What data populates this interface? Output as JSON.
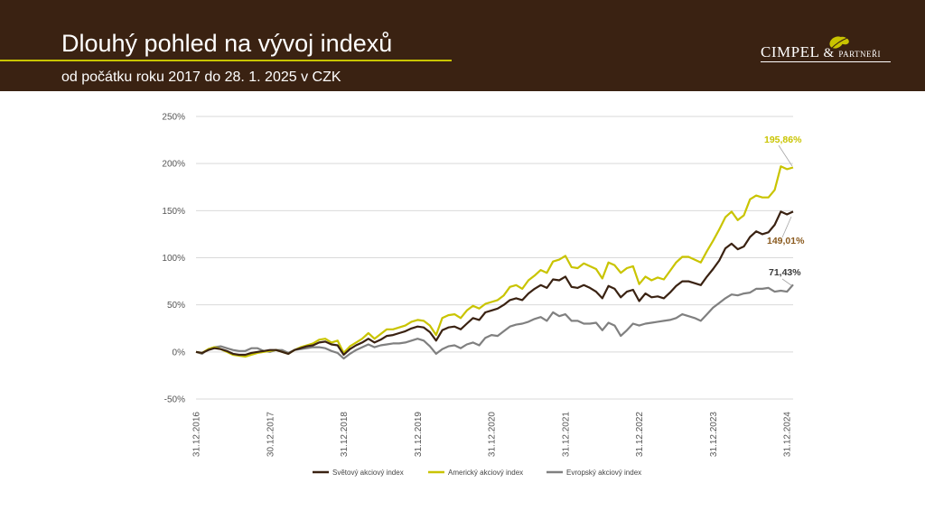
{
  "slide": {
    "title": "Dlouhý pohled na vývoj indexů",
    "subtitle": "od počátku roku 2017 do 28. 1. 2025 v CZK",
    "logo_main": "CIMPEL",
    "logo_amp": "&",
    "logo_small": "PARTNEŘI"
  },
  "colors": {
    "header_bg": "#3a2212",
    "accent": "#c9c400",
    "world": "#3a2212",
    "america": "#c9c400",
    "europe": "#808080"
  },
  "chart_data": {
    "type": "line",
    "title": "",
    "xlabel": "",
    "ylabel": "",
    "ylim": [
      -50,
      250
    ],
    "y_ticks": [
      "-50%",
      "0%",
      "50%",
      "100%",
      "150%",
      "200%",
      "250%"
    ],
    "y_tick_values": [
      -50,
      0,
      50,
      100,
      150,
      200,
      250
    ],
    "x_range": [
      0,
      97
    ],
    "x_tick_labels": [
      "31.12.2016",
      "30.12.2017",
      "31.12.2018",
      "31.12.2019",
      "31.12.2020",
      "31.12.2021",
      "31.12.2022",
      "31.12.2023",
      "31.12.2024"
    ],
    "x_tick_positions": [
      0,
      12,
      24,
      36,
      48,
      60,
      72,
      84,
      96
    ],
    "grid": true,
    "legend_position": "bottom",
    "series": [
      {
        "name": "Světový akciový index",
        "color": "#3a2212",
        "end_label": "149,01%",
        "values": [
          0,
          -1,
          2,
          4,
          3,
          1,
          -2,
          -3,
          -3,
          -1,
          0,
          1,
          2,
          2,
          0,
          -2,
          2,
          4,
          6,
          7,
          10,
          11,
          8,
          7,
          -3,
          3,
          7,
          10,
          14,
          10,
          13,
          17,
          18,
          20,
          22,
          25,
          27,
          26,
          21,
          12,
          23,
          26,
          27,
          24,
          30,
          36,
          34,
          42,
          44,
          46,
          50,
          55,
          57,
          55,
          62,
          67,
          71,
          68,
          77,
          76,
          80,
          69,
          68,
          71,
          68,
          64,
          57,
          70,
          67,
          58,
          64,
          66,
          54,
          62,
          58,
          59,
          57,
          63,
          70,
          75,
          75,
          73,
          71,
          80,
          88,
          97,
          110,
          115,
          109,
          112,
          122,
          128,
          125,
          127,
          135,
          149,
          146,
          149
        ]
      },
      {
        "name": "Americký akciový index",
        "color": "#c9c400",
        "end_label": "195,86%",
        "values": [
          0,
          -1,
          3,
          5,
          3,
          0,
          -3,
          -4,
          -5,
          -3,
          -1,
          0,
          1,
          2,
          0,
          -2,
          2,
          5,
          7,
          9,
          13,
          14,
          10,
          12,
          -1,
          6,
          10,
          14,
          20,
          14,
          19,
          24,
          24,
          26,
          28,
          32,
          34,
          33,
          28,
          18,
          36,
          39,
          40,
          36,
          44,
          49,
          46,
          51,
          53,
          55,
          60,
          69,
          71,
          67,
          76,
          81,
          87,
          84,
          96,
          98,
          102,
          90,
          89,
          94,
          91,
          88,
          78,
          95,
          92,
          84,
          89,
          91,
          72,
          80,
          76,
          79,
          77,
          86,
          95,
          101,
          101,
          98,
          95,
          107,
          118,
          130,
          143,
          149,
          140,
          145,
          162,
          166,
          164,
          164,
          172,
          197,
          194,
          195.86
        ]
      },
      {
        "name": "Evropský akciový index",
        "color": "#808080",
        "end_label": "71,43%",
        "values": [
          0,
          -2,
          3,
          5,
          6,
          4,
          2,
          1,
          1,
          4,
          4,
          1,
          0,
          2,
          2,
          -1,
          2,
          3,
          4,
          5,
          5,
          4,
          1,
          -1,
          -7,
          -2,
          2,
          5,
          8,
          5,
          7,
          8,
          9,
          9,
          10,
          12,
          14,
          12,
          6,
          -2,
          3,
          6,
          7,
          4,
          8,
          10,
          7,
          15,
          18,
          17,
          22,
          27,
          29,
          30,
          32,
          35,
          37,
          33,
          42,
          38,
          40,
          33,
          33,
          30,
          30,
          31,
          23,
          31,
          28,
          17,
          23,
          30,
          28,
          30,
          31,
          32,
          33,
          34,
          36,
          40,
          38,
          36,
          33,
          40,
          47,
          52,
          57,
          61,
          60,
          62,
          63,
          67,
          67,
          68,
          64,
          65,
          64,
          71.43
        ]
      }
    ]
  }
}
